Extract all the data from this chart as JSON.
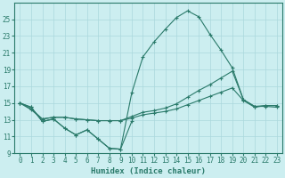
{
  "xlabel": "Humidex (Indice chaleur)",
  "x": [
    0,
    1,
    2,
    3,
    4,
    5,
    6,
    7,
    8,
    9,
    10,
    11,
    12,
    13,
    14,
    15,
    16,
    17,
    18,
    19,
    20,
    21,
    22,
    23
  ],
  "line_peak": [
    15.0,
    14.5,
    12.8,
    13.1,
    12.0,
    11.2,
    11.8,
    10.7,
    9.6,
    9.5,
    16.2,
    20.5,
    22.3,
    23.8,
    25.2,
    26.0,
    25.3,
    23.2,
    21.3,
    19.2,
    15.4,
    14.6,
    14.6,
    14.5
  ],
  "line_low": [
    15.0,
    14.5,
    12.8,
    13.1,
    12.0,
    11.2,
    11.8,
    10.7,
    9.6,
    9.5,
    12.8,
    null,
    null,
    null,
    null,
    null,
    null,
    null,
    null,
    null,
    null,
    null,
    null,
    null
  ],
  "line_upper": [
    15.0,
    14.3,
    13.1,
    13.3,
    13.3,
    13.1,
    13.0,
    12.9,
    12.9,
    12.9,
    13.4,
    13.9,
    14.1,
    14.4,
    14.9,
    15.7,
    16.5,
    17.2,
    18.0,
    18.8,
    15.4,
    14.6,
    14.7,
    14.7
  ],
  "line_lower": [
    15.0,
    14.2,
    13.1,
    13.3,
    13.3,
    13.1,
    13.0,
    12.9,
    12.9,
    12.9,
    13.2,
    13.6,
    13.8,
    14.0,
    14.3,
    14.8,
    15.3,
    15.8,
    16.3,
    16.8,
    15.3,
    14.5,
    14.7,
    14.7
  ],
  "color": "#2a7a6a",
  "bg_color": "#cceef0",
  "grid_color": "#aad8dc",
  "ylim": [
    9,
    27
  ],
  "xlim": [
    -0.5,
    23.5
  ],
  "yticks": [
    9,
    11,
    13,
    15,
    17,
    19,
    21,
    23,
    25
  ],
  "xticks": [
    0,
    1,
    2,
    3,
    4,
    5,
    6,
    7,
    8,
    9,
    10,
    11,
    12,
    13,
    14,
    15,
    16,
    17,
    18,
    19,
    20,
    21,
    22,
    23
  ],
  "tick_fontsize": 5.5,
  "xlabel_fontsize": 6.5
}
